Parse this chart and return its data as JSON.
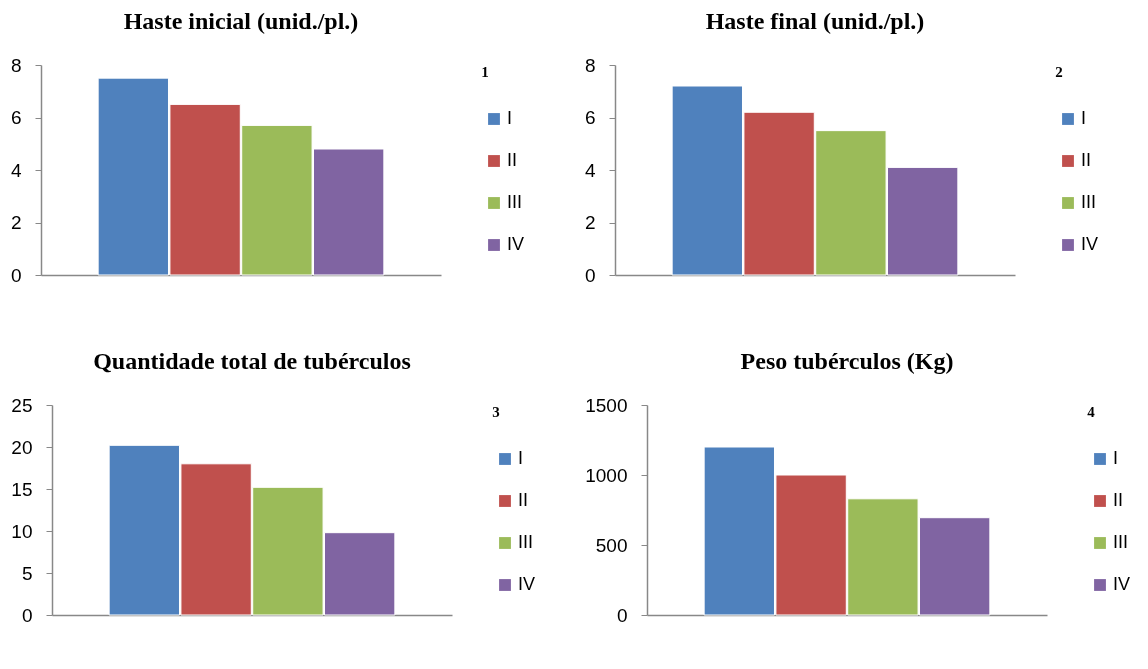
{
  "chart_data": [
    {
      "type": "bar",
      "title": "Haste inicial (unid./pl.)",
      "categories": [
        null
      ],
      "series": [
        {
          "name": "I",
          "color": "#4f81bd",
          "values": [
            7.5
          ]
        },
        {
          "name": "II",
          "color": "#c0504d",
          "values": [
            6.5
          ]
        },
        {
          "name": "III",
          "color": "#9bbb59",
          "values": [
            5.7
          ]
        },
        {
          "name": "IV",
          "color": "#8064a2",
          "values": [
            4.8
          ]
        }
      ],
      "ylim": [
        0,
        8
      ],
      "yticks": [
        0,
        2,
        4,
        6,
        8
      ],
      "grid": false,
      "legend": "right",
      "annotations": [
        "1"
      ]
    },
    {
      "type": "bar",
      "title": "Haste final (unid./pl.)",
      "categories": [
        null
      ],
      "series": [
        {
          "name": "I",
          "color": "#4f81bd",
          "values": [
            7.2
          ]
        },
        {
          "name": "II",
          "color": "#c0504d",
          "values": [
            6.2
          ]
        },
        {
          "name": "III",
          "color": "#9bbb59",
          "values": [
            5.5
          ]
        },
        {
          "name": "IV",
          "color": "#8064a2",
          "values": [
            4.1
          ]
        }
      ],
      "ylim": [
        0,
        8
      ],
      "yticks": [
        0,
        2,
        4,
        6,
        8
      ],
      "grid": false,
      "legend": "right",
      "annotations": [
        "2"
      ]
    },
    {
      "type": "bar",
      "title": "Quantidade total de tubérculos",
      "categories": [
        null
      ],
      "series": [
        {
          "name": "I",
          "color": "#4f81bd",
          "values": [
            20.2
          ]
        },
        {
          "name": "II",
          "color": "#c0504d",
          "values": [
            18.0
          ]
        },
        {
          "name": "III",
          "color": "#9bbb59",
          "values": [
            15.2
          ]
        },
        {
          "name": "IV",
          "color": "#8064a2",
          "values": [
            9.8
          ]
        }
      ],
      "ylim": [
        0,
        25
      ],
      "yticks": [
        0,
        5,
        10,
        15,
        20,
        25
      ],
      "grid": false,
      "legend": "right",
      "annotations": [
        "3"
      ]
    },
    {
      "type": "bar",
      "title": "Peso tubérculos (Kg)",
      "categories": [
        null
      ],
      "series": [
        {
          "name": "I",
          "color": "#4f81bd",
          "values": [
            1200
          ]
        },
        {
          "name": "II",
          "color": "#c0504d",
          "values": [
            1000
          ]
        },
        {
          "name": "III",
          "color": "#9bbb59",
          "values": [
            830
          ]
        },
        {
          "name": "IV",
          "color": "#8064a2",
          "values": [
            695
          ]
        }
      ],
      "ylim": [
        0,
        1500
      ],
      "yticks": [
        0,
        500,
        1000,
        1500
      ],
      "grid": false,
      "legend": "right",
      "annotations": [
        "4"
      ]
    }
  ]
}
